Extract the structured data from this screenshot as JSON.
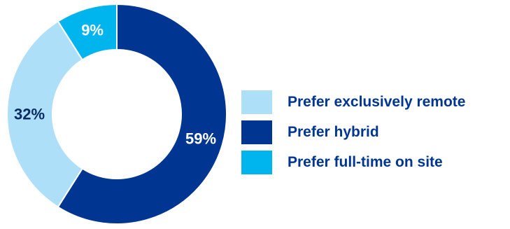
{
  "chart_data": {
    "type": "pie",
    "title": "",
    "slices": [
      {
        "label": "Prefer hybrid",
        "value": 59,
        "display": "59%",
        "color": "#003591",
        "text_color": "#ffffff"
      },
      {
        "label": "Prefer exclusively remote",
        "value": 32,
        "display": "32%",
        "color": "#addff8",
        "text_color": "#0b2b63"
      },
      {
        "label": "Prefer full-time on site",
        "value": 9,
        "display": "9%",
        "color": "#00b4ee",
        "text_color": "#ffffff"
      }
    ],
    "legend": {
      "position": "right",
      "items": [
        {
          "label": "Prefer exclusively remote",
          "color": "#addff8"
        },
        {
          "label": "Prefer hybrid",
          "color": "#003591"
        },
        {
          "label": "Prefer full-time on site",
          "color": "#00b4ee"
        }
      ],
      "text_color": "#003591"
    },
    "donut": true
  }
}
